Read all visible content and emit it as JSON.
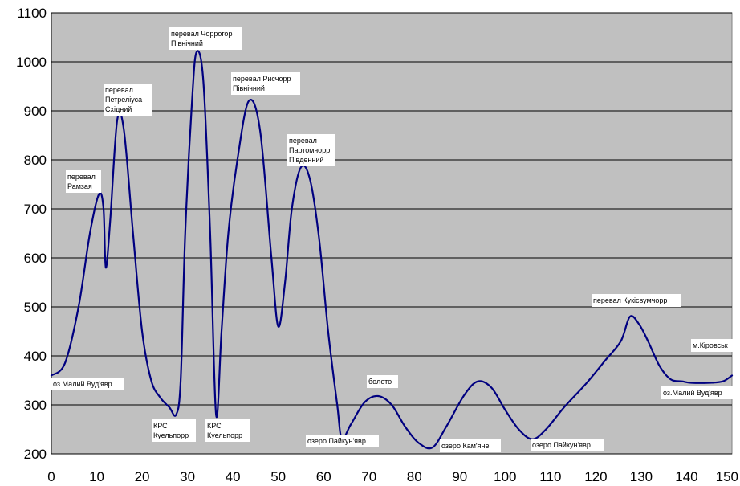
{
  "chart_data": {
    "type": "line",
    "title": "",
    "xlabel": "",
    "ylabel": "",
    "xlim": [
      0,
      150
    ],
    "ylim": [
      200,
      1100
    ],
    "x_ticks": [
      0,
      10,
      20,
      30,
      40,
      50,
      60,
      70,
      80,
      90,
      100,
      110,
      120,
      130,
      140,
      150
    ],
    "y_ticks": [
      200,
      300,
      400,
      500,
      600,
      700,
      800,
      900,
      1000,
      1100
    ],
    "grid": "horizontal",
    "plot_background": "#c0c0c0",
    "line_color": "#000080",
    "series": [
      {
        "points": [
          [
            0,
            360
          ],
          [
            3,
            385
          ],
          [
            6,
            500
          ],
          [
            8.5,
            650
          ],
          [
            10.5,
            730
          ],
          [
            11.5,
            700
          ],
          [
            12,
            580
          ],
          [
            13,
            680
          ],
          [
            14.5,
            880
          ],
          [
            16,
            860
          ],
          [
            18,
            650
          ],
          [
            20,
            450
          ],
          [
            22,
            350
          ],
          [
            24,
            315
          ],
          [
            26,
            295
          ],
          [
            27.5,
            280
          ],
          [
            28.5,
            350
          ],
          [
            29.5,
            650
          ],
          [
            31,
            920
          ],
          [
            32,
            1020
          ],
          [
            33.5,
            960
          ],
          [
            35,
            650
          ],
          [
            36.3,
            280
          ],
          [
            37.5,
            450
          ],
          [
            39,
            650
          ],
          [
            41,
            800
          ],
          [
            43.5,
            920
          ],
          [
            46,
            860
          ],
          [
            48.5,
            600
          ],
          [
            50,
            460
          ],
          [
            51.5,
            550
          ],
          [
            53,
            700
          ],
          [
            55,
            785
          ],
          [
            57,
            760
          ],
          [
            59,
            640
          ],
          [
            61,
            450
          ],
          [
            63,
            300
          ],
          [
            64,
            232
          ],
          [
            66,
            260
          ],
          [
            69,
            305
          ],
          [
            72,
            318
          ],
          [
            75,
            300
          ],
          [
            78,
            255
          ],
          [
            81,
            222
          ],
          [
            84,
            213
          ],
          [
            87,
            255
          ],
          [
            91,
            320
          ],
          [
            94,
            348
          ],
          [
            97,
            335
          ],
          [
            100,
            290
          ],
          [
            103,
            250
          ],
          [
            106,
            230
          ],
          [
            109,
            250
          ],
          [
            113,
            295
          ],
          [
            118,
            345
          ],
          [
            122,
            390
          ],
          [
            125.5,
            430
          ],
          [
            127.5,
            480
          ],
          [
            129.5,
            465
          ],
          [
            131.5,
            430
          ],
          [
            134,
            380
          ],
          [
            136.5,
            352
          ],
          [
            139,
            348
          ],
          [
            141,
            345
          ],
          [
            145,
            345
          ],
          [
            148,
            348
          ],
          [
            150,
            360
          ]
        ]
      }
    ],
    "annotations": [
      {
        "lines": [
          "перевал",
          "Рамзая"
        ],
        "x": 10,
        "y": 740
      },
      {
        "lines": [
          "перевал",
          "Петреліуса",
          "Східний"
        ],
        "x": 15,
        "y": 890
      },
      {
        "lines": [
          "перевал Чоррогор",
          "Північний"
        ],
        "x": 32,
        "y": 1020
      },
      {
        "lines": [
          "перевал Рисчорр",
          "Північний"
        ],
        "x": 44,
        "y": 920
      },
      {
        "lines": [
          "перевал",
          "Партомчорр",
          "Південний"
        ],
        "x": 55,
        "y": 785
      },
      {
        "lines": [
          "оз.Малий Вуд'явр"
        ],
        "x": 0,
        "y": 360
      },
      {
        "lines": [
          "КРС",
          "Куельпорр"
        ],
        "x": 28,
        "y": 280
      },
      {
        "lines": [
          "КРС",
          "Куельпорр"
        ],
        "x": 36.5,
        "y": 280
      },
      {
        "lines": [
          "озеро Пайкун'явр"
        ],
        "x": 64,
        "y": 232
      },
      {
        "lines": [
          "болото"
        ],
        "x": 72,
        "y": 318
      },
      {
        "lines": [
          "озеро Кам'яне"
        ],
        "x": 84,
        "y": 213
      },
      {
        "lines": [
          "озеро Пайкун'явр"
        ],
        "x": 106,
        "y": 230
      },
      {
        "lines": [
          "перевал Кукісвумчорр"
        ],
        "x": 127.5,
        "y": 480
      },
      {
        "lines": [
          "оз.Малий Вуд'явр"
        ],
        "x": 145,
        "y": 345
      },
      {
        "lines": [
          "м.Кіровськ"
        ],
        "x": 150,
        "y": 360
      }
    ]
  }
}
